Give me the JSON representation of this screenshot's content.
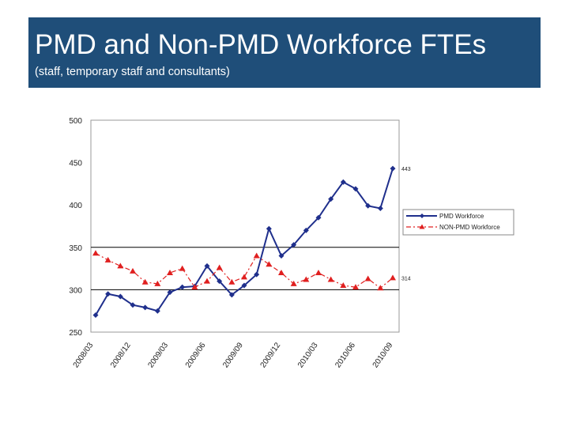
{
  "slide": {
    "title": "PMD and Non-PMD Workforce FTEs",
    "subtitle": "(staff, temporary staff and consultants)"
  },
  "chart_data": {
    "type": "line",
    "title": "",
    "xlabel": "",
    "ylabel": "",
    "ylim": [
      250,
      500
    ],
    "yticks": [
      250,
      300,
      350,
      400,
      450,
      500
    ],
    "reference_lines": [
      300,
      350
    ],
    "grid": false,
    "legend_position": "right",
    "x_tick_labels": [
      "2008/03",
      "2008/12",
      "2009/03",
      "2009/06",
      "2009/09",
      "2009/12",
      "2010/03",
      "2010/06",
      "2010/09"
    ],
    "series": [
      {
        "name": "PMD Workforce",
        "color": "#1f2f8c",
        "marker": "diamond",
        "line_style": "solid",
        "values": [
          270,
          295,
          292,
          282,
          279,
          275,
          297,
          303,
          304,
          328,
          310,
          294,
          305,
          318,
          372,
          340,
          353,
          370,
          385,
          407,
          427,
          419,
          399,
          396,
          443
        ],
        "end_label": "443"
      },
      {
        "name": "NON-PMD Workforce",
        "color": "#e02020",
        "marker": "triangle",
        "line_style": "dashed",
        "values": [
          343,
          335,
          328,
          322,
          309,
          307,
          320,
          325,
          303,
          310,
          326,
          309,
          315,
          340,
          330,
          320,
          307,
          312,
          320,
          312,
          305,
          303,
          313,
          302,
          314
        ],
        "end_label": "314"
      }
    ]
  }
}
